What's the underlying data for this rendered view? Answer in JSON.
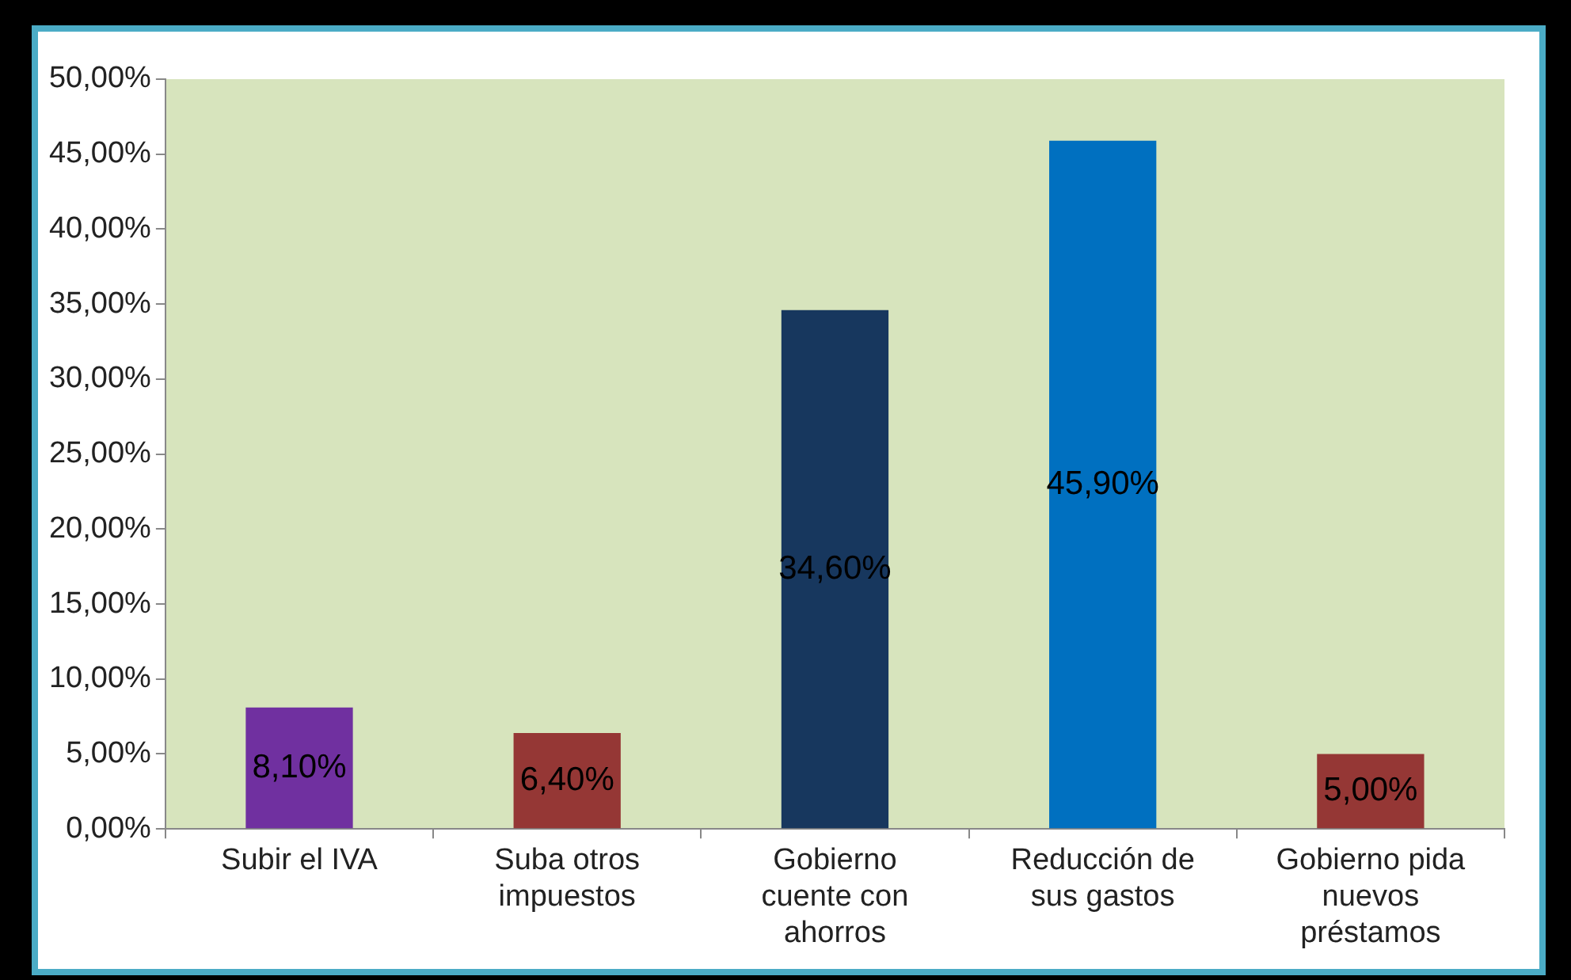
{
  "chart_data": {
    "type": "bar",
    "categories": [
      "Subir el IVA",
      "Suba otros impuestos",
      "Gobierno cuente con ahorros",
      "Reducción de sus gastos",
      "Gobierno pida nuevos préstamos"
    ],
    "values": [
      8.1,
      6.4,
      34.6,
      45.9,
      5.0
    ],
    "colors": [
      "#7030a0",
      "#953735",
      "#17375e",
      "#0070c0",
      "#953735"
    ],
    "value_labels": [
      "8,10%",
      "6,40%",
      "34,60%",
      "45,90%",
      "5,00%"
    ],
    "ylim": [
      0,
      50
    ],
    "yticks": [
      {
        "value": 0,
        "label": "0,00%"
      },
      {
        "value": 5,
        "label": "5,00%"
      },
      {
        "value": 10,
        "label": "10,00%"
      },
      {
        "value": 15,
        "label": "15,00%"
      },
      {
        "value": 20,
        "label": "20,00%"
      },
      {
        "value": 25,
        "label": "25,00%"
      },
      {
        "value": 30,
        "label": "30,00%"
      },
      {
        "value": 35,
        "label": "35,00%"
      },
      {
        "value": 40,
        "label": "40,00%"
      },
      {
        "value": 45,
        "label": "45,00%"
      },
      {
        "value": 50,
        "label": "50,00%"
      }
    ],
    "legend": false
  }
}
